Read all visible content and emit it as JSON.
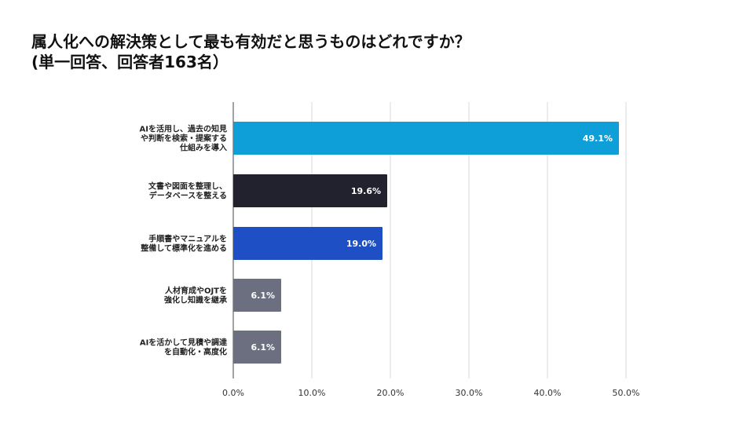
{
  "title": {
    "line1": "属人化への解決策として最も有効だと思うものはどれですか？",
    "line2": "(単一回答、回答者163名）"
  },
  "chart_data": {
    "type": "bar",
    "orientation": "horizontal",
    "categories": [
      [
        "AIを活用し、過去の知見",
        "や判断を検索・提案する",
        "仕組みを導入"
      ],
      [
        "文書や図面を整理し、",
        "データベースを整える"
      ],
      [
        "手順書やマニュアルを",
        "整備して標準化を進める"
      ],
      [
        "人材育成やOJTを",
        "強化し知識を継承"
      ],
      [
        "AIを活かして見積や調達",
        "を自動化・高度化"
      ]
    ],
    "values": [
      49.1,
      19.6,
      19.0,
      6.1,
      6.1
    ],
    "value_labels": [
      "49.1%",
      "19.6%",
      "19.0%",
      "6.1%",
      "6.1%"
    ],
    "colors": [
      "#0e9ed8",
      "#22222e",
      "#1f4fc4",
      "#6c6f80",
      "#6c6f80"
    ],
    "xlim": [
      0,
      50
    ],
    "xticks": [
      "0.0%",
      "10.0%",
      "20.0%",
      "30.0%",
      "40.0%",
      "50.0%"
    ],
    "grid": true
  }
}
